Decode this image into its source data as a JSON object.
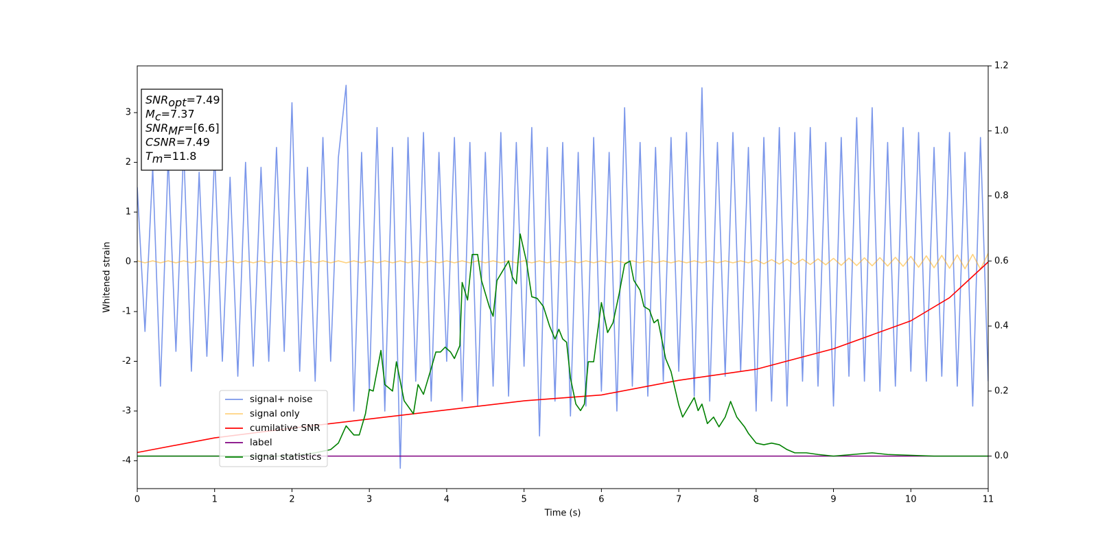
{
  "chart_data": {
    "type": "line",
    "xlabel": "Time (s)",
    "ylabel": "Whitened strain",
    "xlim": [
      0,
      11
    ],
    "ylim": [
      -4.56,
      3.94
    ],
    "y2lim": [
      -0.1,
      1.2
    ],
    "xticks": [
      0,
      1,
      2,
      3,
      4,
      5,
      6,
      7,
      8,
      9,
      10,
      11
    ],
    "yticks": [
      -4,
      -3,
      -2,
      -1,
      0,
      1,
      2,
      3
    ],
    "y2ticks": [
      {
        "value": 0,
        "label": "0.0"
      },
      0.2,
      0.4,
      0.6,
      0.8,
      {
        "value": 1,
        "label": "1.0"
      },
      1.2
    ],
    "grid": false,
    "legend": "lower left",
    "annotation": [
      {
        "main": "SNR",
        "sub": "opt",
        "rest": "=7.49"
      },
      {
        "main": "M",
        "sub": "c",
        "rest": "=7.37"
      },
      {
        "main": "SNR",
        "sub": "MF",
        "rest": "=[6.6]"
      },
      {
        "main": "CSNR",
        "rest": "=7.49"
      },
      {
        "main": "T",
        "sub": "m",
        "rest": "=11.8"
      }
    ],
    "x": [
      0,
      0.1,
      0.2,
      0.3,
      0.4,
      0.5,
      0.6,
      0.7,
      0.8,
      0.9,
      1,
      1.1,
      1.2,
      1.3,
      1.4,
      1.5,
      1.6,
      1.7,
      1.8,
      1.9,
      2,
      2.1,
      2.2,
      2.3,
      2.4,
      2.5,
      2.6,
      2.7,
      2.8,
      2.9,
      3,
      3.1,
      3.2,
      3.3,
      3.4,
      3.5,
      3.6,
      3.7,
      3.8,
      3.9,
      4,
      4.1,
      4.2,
      4.3,
      4.4,
      4.5,
      4.6,
      4.7,
      4.8,
      4.9,
      5,
      5.1,
      5.2,
      5.3,
      5.4,
      5.5,
      5.6,
      5.7,
      5.8,
      5.9,
      6,
      6.1,
      6.2,
      6.3,
      6.4,
      6.5,
      6.6,
      6.7,
      6.8,
      6.9,
      7,
      7.1,
      7.2,
      7.3,
      7.4,
      7.5,
      7.6,
      7.7,
      7.8,
      7.9,
      8,
      8.1,
      8.2,
      8.3,
      8.4,
      8.5,
      8.6,
      8.7,
      8.8,
      8.9,
      9,
      9.1,
      9.2,
      9.3,
      9.4,
      9.5,
      9.6,
      9.7,
      9.8,
      9.9,
      10,
      10.1,
      10.2,
      10.3,
      10.4,
      10.5,
      10.6,
      10.7,
      10.8,
      10.9,
      11
    ],
    "series": [
      {
        "name": "signal+ noise",
        "color": "#4169e1",
        "opacity": 0.7,
        "values": [
          1.5,
          -1.4,
          1.9,
          -2.5,
          2.1,
          -1.8,
          2.3,
          -2.2,
          1.8,
          -1.9,
          2.2,
          -2.0,
          1.7,
          -2.3,
          2.0,
          -2.1,
          1.9,
          -2.0,
          2.3,
          -1.8,
          3.2,
          -2.2,
          1.9,
          -2.4,
          2.5,
          -2.0,
          2.1,
          3.55,
          -3.0,
          2.2,
          -2.6,
          2.7,
          -3.0,
          2.3,
          -4.15,
          2.5,
          -2.4,
          2.6,
          -2.8,
          2.2,
          -2.0,
          2.5,
          -2.8,
          2.4,
          -2.9,
          2.2,
          -2.5,
          2.6,
          -2.7,
          2.4,
          -2.1,
          2.7,
          -3.5,
          2.3,
          -2.8,
          2.4,
          -3.1,
          2.2,
          -2.9,
          2.5,
          -2.6,
          2.2,
          -3.0,
          3.1,
          -2.5,
          2.4,
          -2.7,
          2.3,
          -2.4,
          2.5,
          -2.2,
          2.6,
          -2.7,
          3.5,
          -2.8,
          2.4,
          -2.3,
          2.6,
          -2.2,
          2.3,
          -3.0,
          2.5,
          -2.8,
          2.7,
          -2.9,
          2.6,
          -2.4,
          2.7,
          -2.5,
          2.4,
          -2.9,
          2.5,
          -2.3,
          2.9,
          -2.4,
          3.1,
          -2.6,
          2.4,
          -2.5,
          2.7,
          -2.2,
          2.6,
          -2.4,
          2.3,
          -2.3,
          2.6,
          -2.5,
          2.2,
          -2.9,
          2.5,
          -2.4
        ]
      },
      {
        "name": "signal only",
        "color": "#ffa500",
        "opacity": 0.5,
        "values": [
          0.02,
          -0.02,
          0.02,
          -0.02,
          0.02,
          -0.02,
          0.02,
          -0.02,
          0.02,
          -0.02,
          0.02,
          -0.02,
          0.02,
          -0.02,
          0.02,
          -0.02,
          0.02,
          -0.02,
          0.02,
          -0.02,
          0.02,
          -0.02,
          0.02,
          -0.02,
          0.02,
          -0.02,
          0.02,
          -0.02,
          0.02,
          -0.02,
          0.02,
          -0.02,
          0.02,
          -0.02,
          0.02,
          -0.02,
          0.02,
          -0.02,
          0.02,
          -0.02,
          0.02,
          -0.02,
          0.02,
          -0.02,
          0.02,
          -0.02,
          0.02,
          -0.02,
          0.02,
          -0.02,
          0.02,
          -0.02,
          0.02,
          -0.02,
          0.02,
          -0.02,
          0.02,
          -0.02,
          0.02,
          -0.02,
          0.02,
          -0.02,
          0.02,
          -0.02,
          0.02,
          -0.02,
          0.02,
          -0.02,
          0.02,
          -0.02,
          0.02,
          -0.02,
          0.02,
          -0.02,
          0.02,
          -0.02,
          0.02,
          -0.02,
          0.02,
          -0.02,
          0.04,
          -0.04,
          0.045,
          -0.045,
          0.05,
          -0.05,
          0.055,
          -0.055,
          0.06,
          -0.06,
          0.07,
          -0.07,
          0.075,
          -0.075,
          0.08,
          -0.08,
          0.085,
          -0.085,
          0.09,
          -0.09,
          0.11,
          -0.11,
          0.12,
          -0.12,
          0.13,
          -0.13,
          0.14,
          -0.14,
          0.15,
          -0.15,
          0.17
        ]
      },
      {
        "name": "cumilative SNR",
        "color": "#ff0000",
        "axis": "y2",
        "x": [
          0,
          1,
          2,
          3,
          4,
          5,
          6,
          7,
          8,
          9,
          10,
          10.5,
          11
        ],
        "values": [
          0.011,
          0.056,
          0.086,
          0.114,
          0.142,
          0.17,
          0.188,
          0.233,
          0.267,
          0.33,
          0.416,
          0.487,
          0.597
        ]
      },
      {
        "name": "label",
        "color": "#800080",
        "axis": "y2",
        "x": [
          0,
          11
        ],
        "values": [
          0,
          0
        ]
      },
      {
        "name": "signal statistics",
        "color": "#008000",
        "axis": "y2",
        "x": [
          0,
          2.0,
          2.3,
          2.5,
          2.6,
          2.7,
          2.8,
          2.87,
          2.95,
          3.0,
          3.05,
          3.15,
          3.2,
          3.3,
          3.35,
          3.45,
          3.57,
          3.63,
          3.7,
          3.8,
          3.86,
          3.92,
          3.98,
          4.05,
          4.1,
          4.17,
          4.2,
          4.27,
          4.33,
          4.4,
          4.45,
          4.55,
          4.6,
          4.65,
          4.75,
          4.8,
          4.85,
          4.9,
          4.95,
          5.03,
          5.1,
          5.17,
          5.25,
          5.33,
          5.4,
          5.45,
          5.5,
          5.55,
          5.6,
          5.67,
          5.73,
          5.78,
          5.83,
          5.9,
          6.0,
          6.08,
          6.15,
          6.23,
          6.3,
          6.37,
          6.42,
          6.5,
          6.55,
          6.62,
          6.68,
          6.73,
          6.83,
          6.9,
          7.0,
          7.05,
          7.2,
          7.25,
          7.3,
          7.37,
          7.45,
          7.52,
          7.6,
          7.67,
          7.75,
          7.85,
          7.9,
          8.0,
          8.1,
          8.2,
          8.3,
          8.4,
          8.5,
          8.65,
          8.8,
          9.0,
          9.5,
          9.7,
          10.3,
          11
        ],
        "values": [
          0,
          0,
          0.01,
          0.02,
          0.04,
          0.093,
          0.065,
          0.065,
          0.13,
          0.205,
          0.2,
          0.325,
          0.22,
          0.2,
          0.29,
          0.17,
          0.13,
          0.22,
          0.19,
          0.27,
          0.32,
          0.32,
          0.335,
          0.32,
          0.3,
          0.34,
          0.534,
          0.48,
          0.62,
          0.62,
          0.54,
          0.46,
          0.43,
          0.54,
          0.58,
          0.6,
          0.55,
          0.53,
          0.683,
          0.6,
          0.49,
          0.485,
          0.46,
          0.4,
          0.36,
          0.39,
          0.36,
          0.35,
          0.24,
          0.16,
          0.14,
          0.16,
          0.29,
          0.29,
          0.472,
          0.38,
          0.41,
          0.5,
          0.59,
          0.6,
          0.54,
          0.51,
          0.46,
          0.45,
          0.41,
          0.42,
          0.3,
          0.26,
          0.157,
          0.12,
          0.18,
          0.14,
          0.16,
          0.1,
          0.12,
          0.09,
          0.12,
          0.168,
          0.12,
          0.09,
          0.07,
          0.04,
          0.035,
          0.04,
          0.035,
          0.02,
          0.01,
          0.01,
          0.005,
          0,
          0.01,
          0.005,
          0,
          0
        ]
      }
    ]
  }
}
